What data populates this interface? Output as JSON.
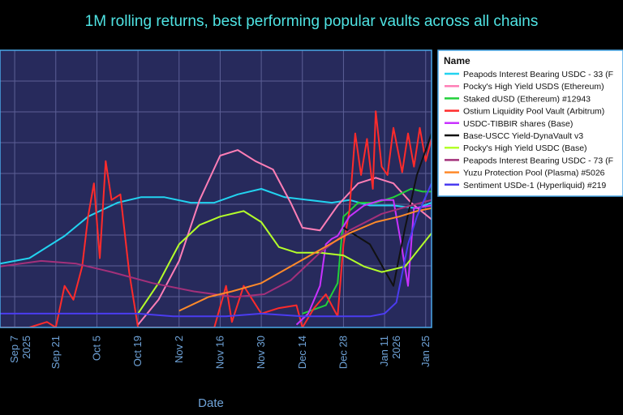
{
  "chart_data": {
    "type": "line",
    "title": "1M rolling returns, best performing popular vaults across all chains",
    "xlabel": "Date",
    "ylabel": "",
    "x_ticks": [
      {
        "date": "2025-09-07",
        "label": "Sep 7",
        "sublabel": "2025"
      },
      {
        "date": "2025-09-21",
        "label": "Sep 21"
      },
      {
        "date": "2025-10-05",
        "label": "Oct 5"
      },
      {
        "date": "2025-10-19",
        "label": "Oct 19"
      },
      {
        "date": "2025-11-02",
        "label": "Nov 2"
      },
      {
        "date": "2025-11-16",
        "label": "Nov 16"
      },
      {
        "date": "2025-11-30",
        "label": "Nov 30"
      },
      {
        "date": "2025-12-14",
        "label": "Dec 14"
      },
      {
        "date": "2025-12-28",
        "label": "Dec 28"
      },
      {
        "date": "2026-01-11",
        "label": "Jan 11",
        "sublabel": "2026"
      },
      {
        "date": "2026-01-25",
        "label": "Jan 25"
      }
    ],
    "x_range": [
      "2025-09-02",
      "2026-01-27"
    ],
    "y_range": [
      0,
      1
    ],
    "y_unit": "relative level (axis values not visible)",
    "grid": true,
    "legend": {
      "title": "Name",
      "position": "right"
    },
    "series": [
      {
        "name": "Peapods Interest Bearing USDC - 33 (F",
        "color": "#22d3f0",
        "points": [
          [
            "2025-09-02",
            0.23
          ],
          [
            "2025-09-12",
            0.25
          ],
          [
            "2025-09-24",
            0.33
          ],
          [
            "2025-10-02",
            0.4
          ],
          [
            "2025-10-12",
            0.45
          ],
          [
            "2025-10-20",
            0.47
          ],
          [
            "2025-10-28",
            0.47
          ],
          [
            "2025-11-06",
            0.45
          ],
          [
            "2025-11-14",
            0.45
          ],
          [
            "2025-11-22",
            0.48
          ],
          [
            "2025-11-30",
            0.5
          ],
          [
            "2025-12-08",
            0.47
          ],
          [
            "2025-12-16",
            0.46
          ],
          [
            "2025-12-24",
            0.45
          ],
          [
            "2025-12-30",
            0.46
          ],
          [
            "2026-01-06",
            0.44
          ],
          [
            "2026-01-14",
            0.44
          ],
          [
            "2026-01-22",
            0.43
          ],
          [
            "2026-01-27",
            0.45
          ]
        ]
      },
      {
        "name": "Pocky's High Yield USDS (Ethereum)",
        "color": "#ff7eb6",
        "points": [
          [
            "2025-10-19",
            0.01
          ],
          [
            "2025-10-26",
            0.1
          ],
          [
            "2025-11-02",
            0.24
          ],
          [
            "2025-11-09",
            0.46
          ],
          [
            "2025-11-16",
            0.62
          ],
          [
            "2025-11-22",
            0.64
          ],
          [
            "2025-11-28",
            0.6
          ],
          [
            "2025-12-04",
            0.57
          ],
          [
            "2025-12-10",
            0.45
          ],
          [
            "2025-12-14",
            0.36
          ],
          [
            "2025-12-20",
            0.35
          ],
          [
            "2025-12-26",
            0.44
          ],
          [
            "2026-01-02",
            0.52
          ],
          [
            "2026-01-08",
            0.54
          ],
          [
            "2026-01-14",
            0.52
          ],
          [
            "2026-01-20",
            0.45
          ],
          [
            "2026-01-27",
            0.39
          ]
        ]
      },
      {
        "name": "Staked dUSD (Ethereum) #12943",
        "color": "#22d03a",
        "points": [
          [
            "2025-12-14",
            0.05
          ],
          [
            "2025-12-22",
            0.08
          ],
          [
            "2025-12-26",
            0.16
          ],
          [
            "2025-12-28",
            0.4
          ],
          [
            "2026-01-02",
            0.45
          ],
          [
            "2026-01-08",
            0.45
          ],
          [
            "2026-01-14",
            0.47
          ],
          [
            "2026-01-20",
            0.5
          ],
          [
            "2026-01-24",
            0.49
          ],
          [
            "2026-01-27",
            0.49
          ]
        ]
      },
      {
        "name": "Ostium Liquidity Pool Vault (Arbitrum)",
        "color": "#ff2b2b",
        "points": [
          [
            "2025-09-02",
            0.0
          ],
          [
            "2025-09-12",
            0.0
          ],
          [
            "2025-09-18",
            0.02
          ],
          [
            "2025-09-21",
            0.0
          ],
          [
            "2025-09-24",
            0.15
          ],
          [
            "2025-09-27",
            0.1
          ],
          [
            "2025-09-30",
            0.22
          ],
          [
            "2025-10-02",
            0.4
          ],
          [
            "2025-10-04",
            0.52
          ],
          [
            "2025-10-06",
            0.25
          ],
          [
            "2025-10-08",
            0.6
          ],
          [
            "2025-10-10",
            0.46
          ],
          [
            "2025-10-13",
            0.48
          ],
          [
            "2025-10-16",
            0.2
          ],
          [
            "2025-10-19",
            0.0
          ],
          [
            "2025-11-02",
            0.0
          ],
          [
            "2025-11-14",
            0.0
          ],
          [
            "2025-11-18",
            0.15
          ],
          [
            "2025-11-20",
            0.02
          ],
          [
            "2025-11-24",
            0.15
          ],
          [
            "2025-11-30",
            0.05
          ],
          [
            "2025-12-06",
            0.07
          ],
          [
            "2025-12-12",
            0.08
          ],
          [
            "2025-12-14",
            0.0
          ],
          [
            "2025-12-18",
            0.07
          ],
          [
            "2025-12-22",
            0.12
          ],
          [
            "2025-12-26",
            0.04
          ],
          [
            "2025-12-28",
            0.3
          ],
          [
            "2025-12-30",
            0.42
          ],
          [
            "2026-01-01",
            0.7
          ],
          [
            "2026-01-03",
            0.55
          ],
          [
            "2026-01-05",
            0.68
          ],
          [
            "2026-01-07",
            0.5
          ],
          [
            "2026-01-08",
            0.78
          ],
          [
            "2026-01-10",
            0.58
          ],
          [
            "2026-01-12",
            0.55
          ],
          [
            "2026-01-14",
            0.72
          ],
          [
            "2026-01-17",
            0.56
          ],
          [
            "2026-01-19",
            0.7
          ],
          [
            "2026-01-21",
            0.58
          ],
          [
            "2026-01-23",
            0.72
          ],
          [
            "2026-01-25",
            0.6
          ],
          [
            "2026-01-27",
            0.68
          ]
        ]
      },
      {
        "name": "USDC-TIBBIR shares (Base)",
        "color": "#c832ff",
        "points": [
          [
            "2025-12-12",
            0.01
          ],
          [
            "2025-12-16",
            0.05
          ],
          [
            "2025-12-20",
            0.15
          ],
          [
            "2025-12-22",
            0.3
          ],
          [
            "2025-12-24",
            0.32
          ],
          [
            "2025-12-26",
            0.33
          ],
          [
            "2025-12-30",
            0.4
          ],
          [
            "2026-01-04",
            0.44
          ],
          [
            "2026-01-10",
            0.46
          ],
          [
            "2026-01-14",
            0.46
          ],
          [
            "2026-01-17",
            0.28
          ],
          [
            "2026-01-19",
            0.15
          ],
          [
            "2026-01-21",
            0.43
          ],
          [
            "2026-01-27",
            0.44
          ]
        ]
      },
      {
        "name": "Base-USCC Yield-DynaVault v3",
        "color": "#111111",
        "points": [
          [
            "2025-12-28",
            0.36
          ],
          [
            "2026-01-06",
            0.3
          ],
          [
            "2026-01-14",
            0.15
          ],
          [
            "2026-01-18",
            0.36
          ],
          [
            "2026-01-22",
            0.55
          ],
          [
            "2026-01-27",
            0.7
          ]
        ]
      },
      {
        "name": "Pocky's High Yield USDC (Base)",
        "color": "#b4ff2a",
        "points": [
          [
            "2025-10-19",
            0.05
          ],
          [
            "2025-10-26",
            0.16
          ],
          [
            "2025-11-02",
            0.3
          ],
          [
            "2025-11-09",
            0.37
          ],
          [
            "2025-11-16",
            0.4
          ],
          [
            "2025-11-24",
            0.42
          ],
          [
            "2025-11-30",
            0.38
          ],
          [
            "2025-12-06",
            0.29
          ],
          [
            "2025-12-12",
            0.27
          ],
          [
            "2025-12-20",
            0.27
          ],
          [
            "2025-12-28",
            0.26
          ],
          [
            "2026-01-04",
            0.22
          ],
          [
            "2026-01-10",
            0.2
          ],
          [
            "2026-01-18",
            0.22
          ],
          [
            "2026-01-24",
            0.3
          ],
          [
            "2026-01-27",
            0.34
          ]
        ]
      },
      {
        "name": "Peapods Interest Bearing USDC - 73 (F",
        "color": "#a3307a",
        "points": [
          [
            "2025-09-02",
            0.22
          ],
          [
            "2025-09-16",
            0.24
          ],
          [
            "2025-09-28",
            0.23
          ],
          [
            "2025-10-10",
            0.2
          ],
          [
            "2025-10-24",
            0.16
          ],
          [
            "2025-11-07",
            0.13
          ],
          [
            "2025-11-21",
            0.11
          ],
          [
            "2025-12-01",
            0.12
          ],
          [
            "2025-12-10",
            0.17
          ],
          [
            "2025-12-20",
            0.27
          ],
          [
            "2025-12-30",
            0.35
          ],
          [
            "2026-01-10",
            0.41
          ],
          [
            "2026-01-20",
            0.44
          ],
          [
            "2026-01-27",
            0.46
          ]
        ]
      },
      {
        "name": "Yuzu Protection Pool (Plasma) #5026",
        "color": "#ff8a2a",
        "points": [
          [
            "2025-11-02",
            0.06
          ],
          [
            "2025-11-12",
            0.11
          ],
          [
            "2025-11-20",
            0.13
          ],
          [
            "2025-11-30",
            0.16
          ],
          [
            "2025-12-10",
            0.22
          ],
          [
            "2025-12-20",
            0.28
          ],
          [
            "2025-12-30",
            0.34
          ],
          [
            "2026-01-08",
            0.38
          ],
          [
            "2026-01-16",
            0.4
          ],
          [
            "2026-01-22",
            0.42
          ],
          [
            "2026-01-27",
            0.43
          ]
        ]
      },
      {
        "name": "Sentiment USDe-1 (Hyperliquid) #219",
        "color": "#4b3cf0",
        "points": [
          [
            "2025-09-02",
            0.05
          ],
          [
            "2025-09-21",
            0.05
          ],
          [
            "2025-10-11",
            0.05
          ],
          [
            "2025-10-19",
            0.05
          ],
          [
            "2025-10-31",
            0.04
          ],
          [
            "2025-11-18",
            0.04
          ],
          [
            "2025-11-30",
            0.05
          ],
          [
            "2025-12-14",
            0.04
          ],
          [
            "2025-12-28",
            0.04
          ],
          [
            "2026-01-06",
            0.04
          ],
          [
            "2026-01-11",
            0.05
          ],
          [
            "2026-01-15",
            0.09
          ],
          [
            "2026-01-19",
            0.3
          ],
          [
            "2026-01-22",
            0.4
          ],
          [
            "2026-01-27",
            0.52
          ]
        ]
      }
    ]
  }
}
